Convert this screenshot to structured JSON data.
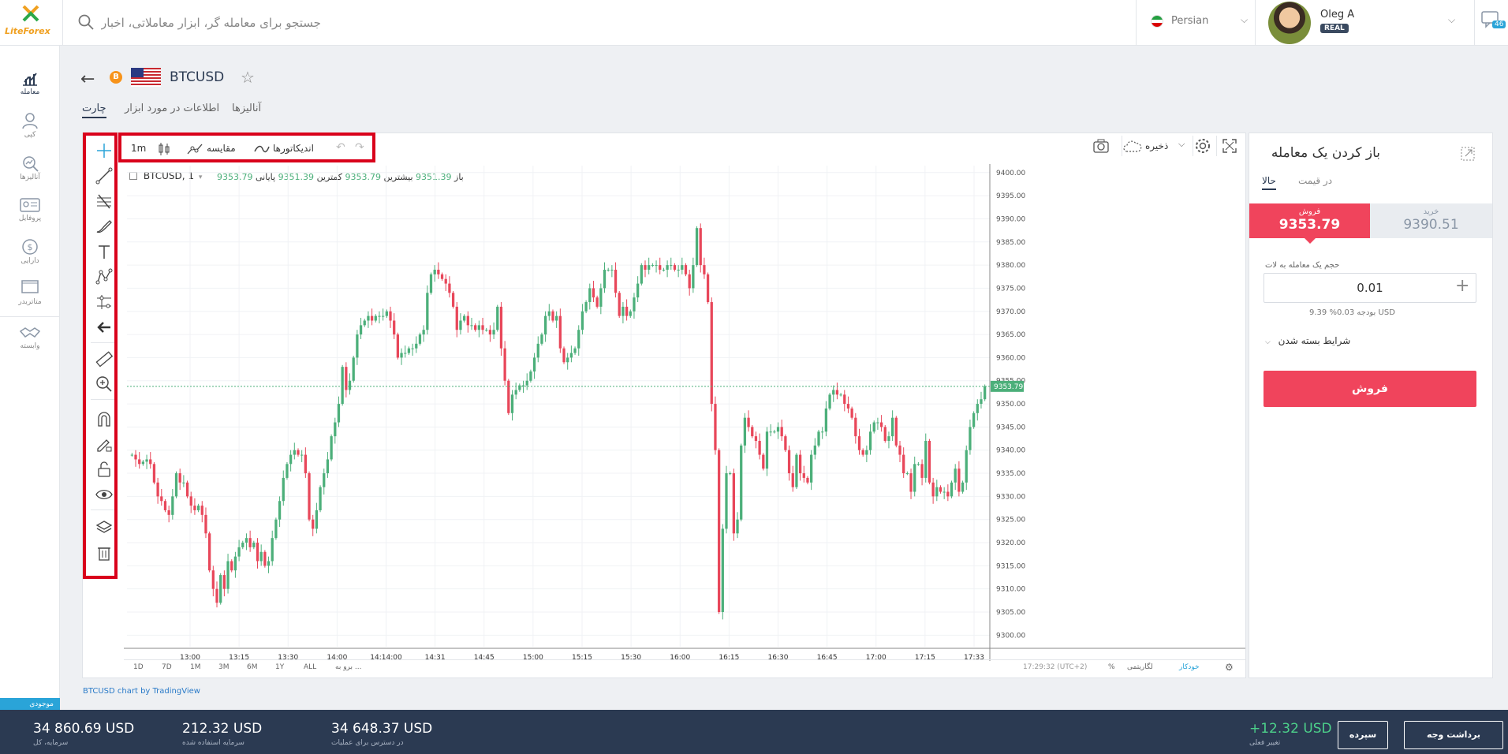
{
  "header": {
    "logo_text": "LiteForex",
    "search_placeholder": "جستجو برای معامله گر، ابزار معاملاتی، اخبار",
    "language": "Persian",
    "user_name": "Oleg A",
    "account_type": "REAL",
    "messages_count": "46"
  },
  "nav": [
    {
      "label": "معامله"
    },
    {
      "label": "کپی"
    },
    {
      "label": "آنالیزها"
    },
    {
      "label": "پروفایل"
    },
    {
      "label": "دارایی"
    },
    {
      "label": "متاتریدر"
    },
    {
      "label": "وابسته"
    }
  ],
  "instrument": {
    "symbol": "BTCUSD",
    "coin_letter": "B"
  },
  "tabs": [
    {
      "label": "چارت",
      "active": true
    },
    {
      "label": "اطلاعات در مورد ابزار",
      "active": false
    },
    {
      "label": "آنالیزها",
      "active": false
    }
  ],
  "chart_toolbar": {
    "interval": "1m",
    "compare": "مقایسه",
    "indicators": "اندیکاتورها",
    "save": "ذخیره"
  },
  "drawing_tools": [
    "crosshair-icon",
    "trend-line-icon",
    "fib-icon",
    "brush-icon",
    "text-icon",
    "pattern-icon",
    "prediction-icon",
    "arrow-left-icon",
    "ruler-icon",
    "zoom-in-icon",
    "magnet-icon",
    "lock-draw-icon",
    "unlock-icon",
    "eye-icon",
    "layers-icon",
    "trash-icon"
  ],
  "legend": {
    "title": "BTCUSD, 1",
    "open_label": "باز",
    "open": "9351.39",
    "high_label": "بیشترین",
    "high": "9353.79",
    "low_label": "کمترین",
    "low": "9351.39",
    "close_label": "پایانی",
    "close": "9353.79"
  },
  "chart_bottom": {
    "ranges": [
      "1D",
      "7D",
      "1M",
      "3M",
      "6M",
      "1Y",
      "ALL"
    ],
    "goto": "برو به ...",
    "clock": "17:29:32 (UTC+2)",
    "pct": "%",
    "log": "لگاریتمی",
    "auto": "خودکار"
  },
  "chart_data": {
    "type": "candlestick",
    "symbol": "BTCUSD",
    "interval": "1",
    "x_tick_labels": [
      "13:00",
      "13:15",
      "13:30",
      "14:00",
      "14:14:00",
      "14:31",
      "14:45",
      "15:00",
      "15:15",
      "15:30",
      "16:00",
      "16:15",
      "16:30",
      "16:45",
      "17:00",
      "17:15",
      "17:33"
    ],
    "y_tick_labels": [
      "9400.00",
      "9395.00",
      "9390.00",
      "9385.00",
      "9380.00",
      "9375.00",
      "9370.00",
      "9365.00",
      "9360.00",
      "9355.00",
      "9350.00",
      "9345.00",
      "9340.00",
      "9335.00",
      "9330.00",
      "9325.00",
      "9320.00",
      "9315.00",
      "9310.00",
      "9305.00",
      "9300.00"
    ],
    "ylim": [
      9297.5,
      9401.5
    ],
    "current_price": 9353.79,
    "up_color": "#4caf7a",
    "down_color": "#e8475a",
    "closes": [
      9339,
      9338,
      9337,
      9337.5,
      9338,
      9337,
      9333,
      9330,
      9329,
      9327,
      9326,
      9330,
      9335,
      9333,
      9333,
      9330,
      9328,
      9327,
      9328,
      9326,
      9322,
      9314,
      9310,
      9307,
      9313,
      9310,
      9316,
      9314,
      9317,
      9319,
      9320,
      9321,
      9319,
      9320,
      9316,
      9318,
      9315,
      9316,
      9321,
      9325,
      9329,
      9334,
      9337,
      9339,
      9340,
      9339,
      9339,
      9335,
      9325,
      9323,
      9327,
      9332,
      9335,
      9338,
      9343,
      9346,
      9350,
      9358,
      9353,
      9355,
      9360,
      9365,
      9367,
      9368,
      9369,
      9368,
      9369,
      9369,
      9369,
      9370,
      9368,
      9365,
      9360,
      9361,
      9361,
      9362,
      9362,
      9363,
      9365,
      9366,
      9374,
      9378,
      9379,
      9378,
      9377,
      9376,
      9374,
      9371,
      9366,
      9368,
      9369,
      9367,
      9367,
      9366,
      9367,
      9366,
      9366,
      9365,
      9366,
      9371,
      9362,
      9355,
      9348,
      9352,
      9353,
      9354,
      9354,
      9355,
      9357,
      9360,
      9363,
      9365,
      9369,
      9370,
      9368,
      9369,
      9362,
      9359,
      9360,
      9361,
      9362,
      9366,
      9370,
      9372,
      9375,
      9373,
      9371,
      9375,
      9379,
      9379,
      9379,
      9374,
      9369,
      9371,
      9369,
      9370,
      9373,
      9376,
      9380,
      9379,
      9380,
      9380,
      9380,
      9379,
      9379,
      9380,
      9380,
      9379,
      9379,
      9380,
      9378,
      9375,
      9380,
      9388,
      9380,
      9378,
      9372,
      9350,
      9340,
      9305,
      9323,
      9335,
      9335,
      9322,
      9325,
      9341,
      9347,
      9345,
      9343,
      9342,
      9339,
      9336,
      9344,
      9344,
      9344,
      9345,
      9343,
      9340,
      9335,
      9332,
      9339,
      9335,
      9334,
      9333,
      9339,
      9341,
      9344,
      9344,
      9349,
      9352,
      9353,
      9352,
      9352,
      9350,
      9349,
      9347,
      9343,
      9340,
      9339,
      9340,
      9344,
      9346,
      9346,
      9345,
      9342,
      9343,
      9347,
      9341,
      9339,
      9335,
      9335,
      9331,
      9337,
      9337,
      9334,
      9342,
      9333,
      9330,
      9332,
      9331,
      9331,
      9330,
      9333,
      9336,
      9331,
      9333,
      9340,
      9345,
      9348,
      9350,
      9351,
      9353.79
    ]
  },
  "trade_panel": {
    "title": "باز کردن یک معامله",
    "tab_now": "حالا",
    "tab_price": "در قیمت",
    "sell_label": "فروش",
    "sell_price": "9353.79",
    "buy_label": "خرید",
    "buy_price": "9390.51",
    "volume_label": "حجم یک معامله به لات",
    "volume": "0.01",
    "budget_line": "بودجه 0.03% 9.39 USD",
    "close_conditions": "شرایط بسته شدن",
    "sell_button": "فروش"
  },
  "tradingview_link": "BTCUSD chart by TradingView",
  "footer": {
    "available_tab": "موجودی",
    "stats": [
      {
        "value": "34 860.69 USD",
        "label": "سرمایه، کل"
      },
      {
        "value": "212.32 USD",
        "label": "سرمایه استفاده شده"
      },
      {
        "value": "34 648.37 USD",
        "label": "در دسترس برای عملیات"
      }
    ],
    "change_value": "+12.32 USD",
    "change_label": "تغییر فعلی",
    "deposit": "سپرده",
    "withdraw": "برداشت وجه",
    "accent_green": "#4cd08a"
  }
}
